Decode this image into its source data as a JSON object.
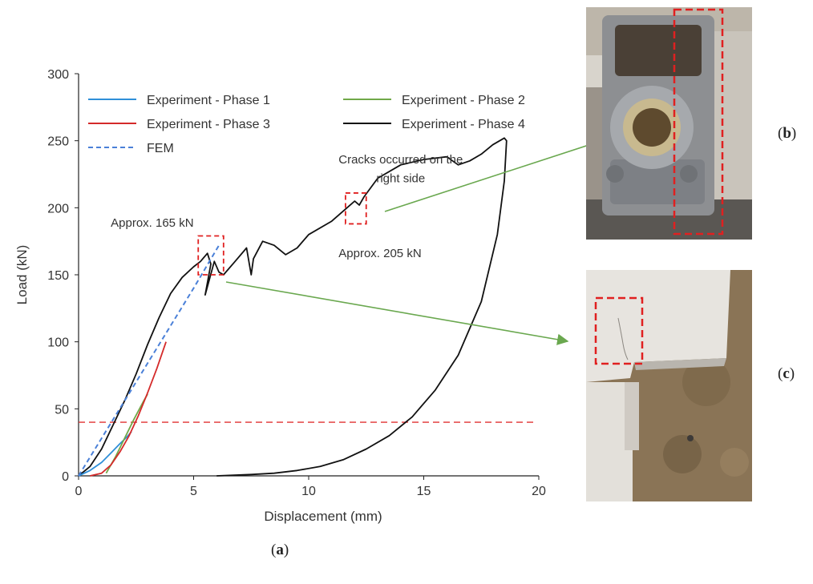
{
  "panel_labels": {
    "a": "a",
    "b": "b",
    "c": "c"
  },
  "chart_data": {
    "type": "line",
    "xlabel": "Displacement (mm)",
    "ylabel": "Load (kN)",
    "xlim": [
      0,
      20
    ],
    "ylim": [
      0,
      300
    ],
    "x_ticks": [
      0,
      5,
      10,
      15,
      20
    ],
    "y_ticks": [
      0,
      50,
      100,
      150,
      200,
      250,
      300
    ],
    "grid": false,
    "legend_position": "top",
    "reference_line": {
      "y": 40,
      "color": "#e03030",
      "style": "dashed"
    },
    "series": [
      {
        "name": "Experiment - Phase 1",
        "color": "#2f8fd8",
        "style": "solid",
        "x": [
          0,
          0.5,
          1.0,
          1.4,
          1.8,
          2.1,
          2.3
        ],
        "y": [
          0,
          4,
          10,
          17,
          24,
          29,
          33
        ]
      },
      {
        "name": "Experiment - Phase 2",
        "color": "#70a848",
        "style": "solid",
        "x": [
          1.2,
          1.6,
          2.0,
          2.4,
          2.8,
          3.0
        ],
        "y": [
          2,
          14,
          28,
          42,
          55,
          61
        ]
      },
      {
        "name": "Experiment - Phase 3",
        "color": "#d42a2a",
        "style": "solid",
        "x": [
          0.5,
          1.0,
          1.4,
          1.8,
          2.2,
          2.6,
          3.0,
          3.4,
          3.8
        ],
        "y": [
          0,
          2,
          8,
          18,
          30,
          45,
          62,
          80,
          100
        ]
      },
      {
        "name": "Experiment - Phase 4",
        "color": "#111111",
        "style": "solid",
        "x": [
          0,
          0.5,
          1.0,
          1.5,
          2.0,
          2.5,
          3.0,
          3.5,
          4.0,
          4.5,
          5.0,
          5.3,
          5.6,
          5.75,
          5.5,
          5.9,
          6.1,
          6.3,
          6.8,
          7.3,
          7.5,
          7.6,
          8.0,
          8.5,
          9.0,
          9.5,
          10.0,
          11.0,
          12.0,
          12.2,
          12.4,
          13.0,
          14.0,
          15.0,
          16.0,
          16.5,
          17.0,
          17.5,
          18.0,
          18.5,
          18.6,
          18.5,
          18.2,
          17.5,
          16.5,
          15.5,
          14.5,
          13.5,
          12.5,
          11.5,
          10.5,
          9.5,
          8.5,
          7.5,
          6.0
        ],
        "y": [
          0,
          7,
          20,
          38,
          56,
          76,
          98,
          118,
          136,
          148,
          156,
          160,
          166,
          158,
          135,
          160,
          152,
          150,
          160,
          170,
          150,
          162,
          175,
          172,
          165,
          170,
          180,
          190,
          205,
          202,
          208,
          222,
          232,
          236,
          238,
          232,
          235,
          240,
          247,
          252,
          250,
          220,
          180,
          130,
          90,
          64,
          44,
          30,
          20,
          12,
          7,
          4,
          2,
          1,
          0
        ]
      },
      {
        "name": "FEM",
        "color": "#4a80d8",
        "style": "dashed",
        "x": [
          0,
          1,
          2,
          3,
          4,
          5,
          6.1
        ],
        "y": [
          0,
          28,
          56,
          84,
          112,
          140,
          172
        ]
      }
    ],
    "annotations": [
      {
        "text": "Cracks occurred on the",
        "x": 14.0,
        "y": 233
      },
      {
        "text": "right side",
        "x": 14.0,
        "y": 219
      },
      {
        "text": "Approx. 165 kN",
        "x": 3.2,
        "y": 186
      },
      {
        "text": "Approx. 205 kN",
        "x": 13.1,
        "y": 163
      }
    ],
    "highlight_boxes": [
      {
        "x0": 5.2,
        "x1": 6.3,
        "y0": 150,
        "y1": 179
      },
      {
        "x0": 11.6,
        "x1": 12.5,
        "y0": 188,
        "y1": 211
      }
    ]
  }
}
